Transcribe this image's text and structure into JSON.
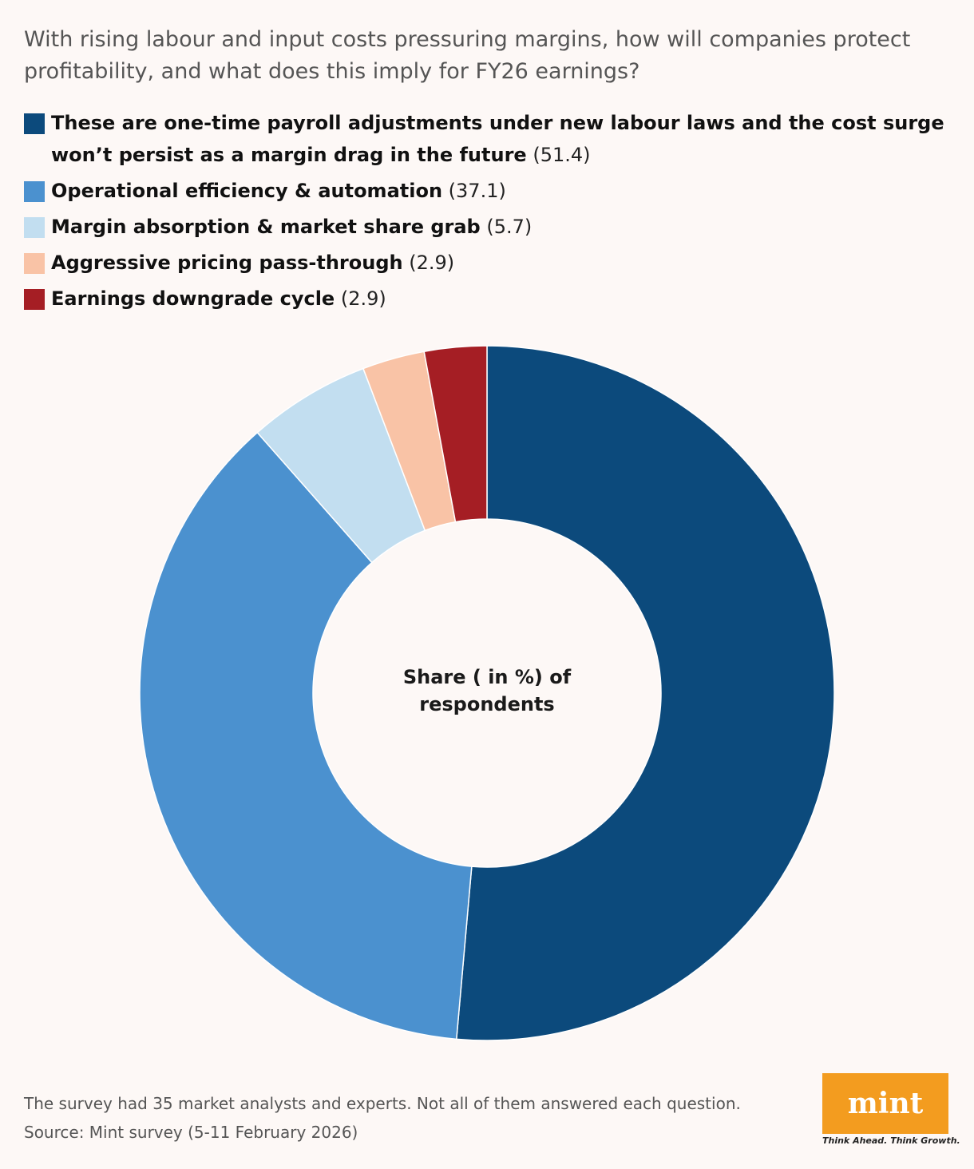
{
  "question": "With rising labour and input costs pressuring margins, how will companies protect profitability, and what does this imply for FY26 earnings?",
  "chart_data": {
    "type": "pie",
    "center_label_lines": [
      "Share ( in %) of",
      "respondents"
    ],
    "categories": [
      "These are one-time payroll adjustments under new labour laws and the cost surge won’t persist as a margin drag in the future",
      "Operational efficiency & automation",
      "Margin absorption & market share grab",
      "Aggressive pricing pass-through",
      "Earnings downgrade cycle"
    ],
    "values": [
      51.4,
      37.1,
      5.7,
      2.9,
      2.9
    ],
    "value_labels": [
      "(51.4)",
      "(37.1)",
      "(5.7)",
      "(2.9)",
      "(2.9)"
    ],
    "colors": [
      "#0c4a7c",
      "#4b91cf",
      "#c2def0",
      "#f9c3a6",
      "#a51e24"
    ],
    "legend_position": "top"
  },
  "footnote": {
    "line1": "The survey had 35 market analysts and experts. Not all of them answered each question.",
    "line2": "Source: Mint survey (5-11 February 2026)"
  },
  "logo": {
    "text": "mint",
    "tagline": "Think Ahead. Think Growth.",
    "color": "#f39c1f"
  }
}
